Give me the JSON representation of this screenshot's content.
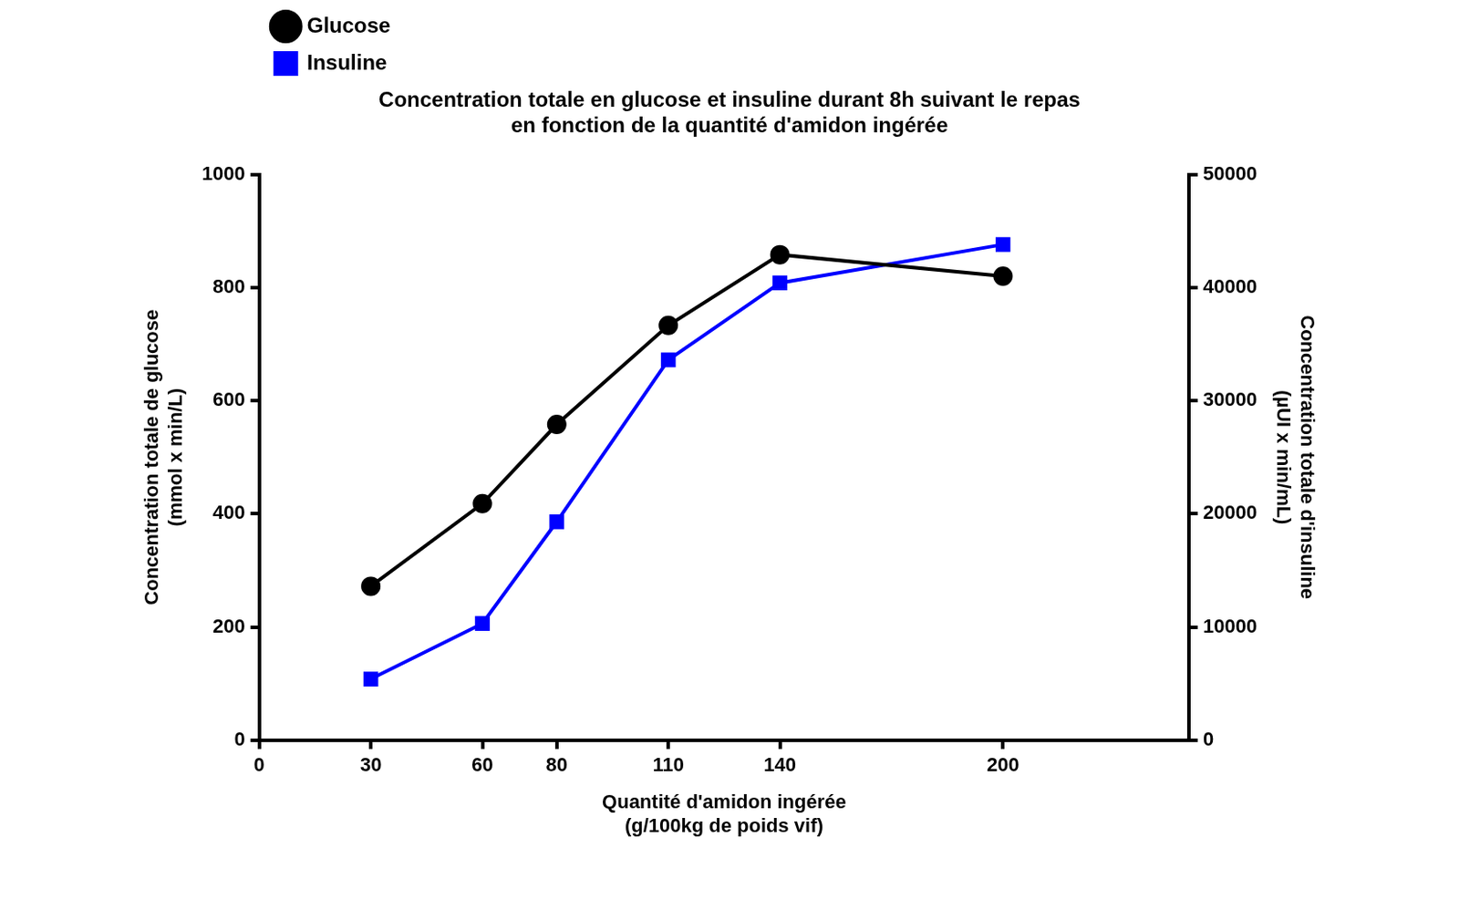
{
  "chart_data": {
    "type": "line",
    "title": [
      "Concentration totale en glucose et insuline durant 8h suivant le repas",
      "en fonction de la quantité d'amidon ingérée"
    ],
    "x_label": [
      "Quantité d'amidon ingérée",
      "(g/100kg de poids vif)"
    ],
    "y_label": [
      "Concentration totale de glucose",
      "(mmol x min/L)"
    ],
    "y2_label": [
      "Concentration totale d'insuline",
      "(µUI x min/mL)"
    ],
    "x": [
      30,
      60,
      80,
      110,
      140,
      200
    ],
    "series": [
      {
        "name": "Glucose",
        "color": "#000000",
        "marker": "circle",
        "values": [
          272,
          418,
          558,
          733,
          858,
          820
        ]
      },
      {
        "name": "Insuline",
        "color": "#0000ff",
        "marker": "square",
        "axis": "y2",
        "values": [
          5400,
          10300,
          19300,
          33600,
          40400,
          43800
        ]
      }
    ],
    "xlim": [
      0,
      250
    ],
    "xticks": [
      0,
      30,
      60,
      80,
      110,
      140,
      200
    ],
    "ylim": [
      0,
      1000
    ],
    "yticks": [
      0,
      200,
      400,
      600,
      800,
      1000
    ],
    "y2lim": [
      0,
      50000
    ],
    "y2ticks": [
      0,
      10000,
      20000,
      30000,
      40000,
      50000
    ],
    "grid": false,
    "legend": "upper left"
  }
}
